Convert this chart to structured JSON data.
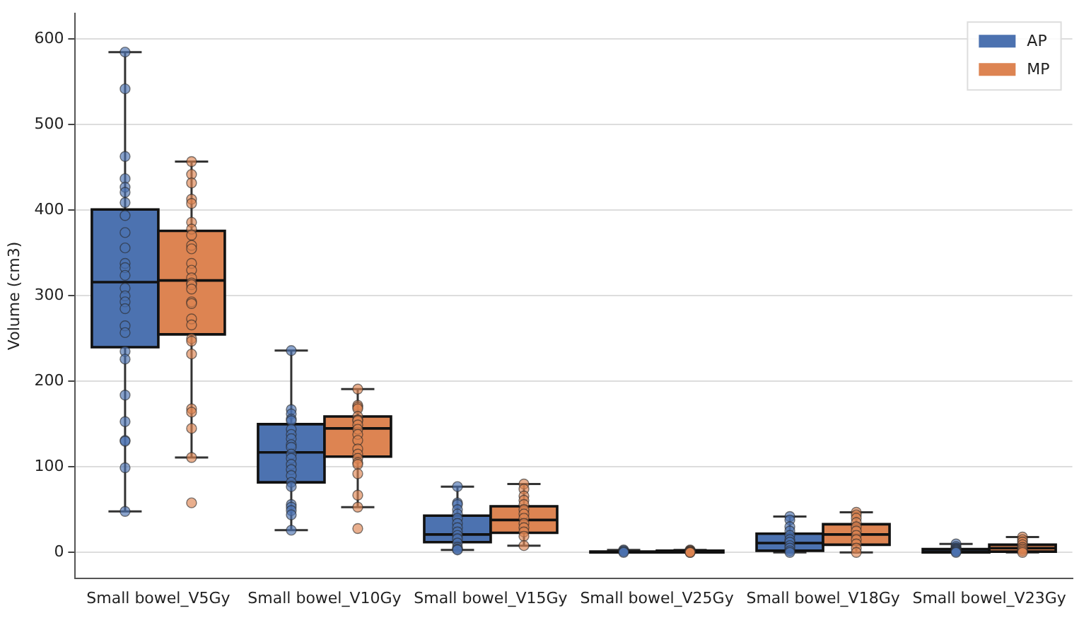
{
  "chart_data": {
    "type": "box",
    "ylabel": "Volume (cm3)",
    "categories": [
      "Small bowel_V5Gy",
      "Small bowel_V10Gy",
      "Small bowel_V15Gy",
      "Small bowel_V25Gy",
      "Small bowel_V18Gy",
      "Small bowel_V23Gy"
    ],
    "ylim": [
      -30,
      630
    ],
    "yticks": [
      0,
      100,
      200,
      300,
      400,
      500,
      600
    ],
    "grid": "y",
    "legend": "top right",
    "series": [
      {
        "name": "AP",
        "color": "#4c72b0",
        "boxes": [
          {
            "low": 48,
            "q1": 240,
            "median": 316,
            "q3": 401,
            "high": 585
          },
          {
            "low": 26,
            "q1": 82,
            "median": 117,
            "q3": 150,
            "high": 236
          },
          {
            "low": 3,
            "q1": 12,
            "median": 21,
            "q3": 43,
            "high": 77
          },
          {
            "low": 0,
            "q1": 0,
            "median": 0.5,
            "q3": 1,
            "high": 3
          },
          {
            "low": 0,
            "q1": 2,
            "median": 11,
            "q3": 22,
            "high": 42
          },
          {
            "low": 0,
            "q1": 0,
            "median": 1,
            "q3": 4,
            "high": 10
          }
        ]
      },
      {
        "name": "MP",
        "color": "#dd8452",
        "boxes": [
          {
            "low": 111,
            "q1": 255,
            "median": 318,
            "q3": 376,
            "high": 457
          },
          {
            "low": 53,
            "q1": 112,
            "median": 145,
            "q3": 159,
            "high": 191
          },
          {
            "low": 8,
            "q1": 23,
            "median": 38,
            "q3": 54,
            "high": 80
          },
          {
            "low": 0,
            "q1": 0,
            "median": 1,
            "q3": 2,
            "high": 3
          },
          {
            "low": 0,
            "q1": 9,
            "median": 21,
            "q3": 33,
            "high": 47
          },
          {
            "low": 0,
            "q1": 1,
            "median": 5,
            "q3": 9,
            "high": 18
          }
        ]
      },
      {
        "type": "scatter",
        "color": "#4c72b0",
        "x": [
          "Small bowel_V5Gy",
          "Small bowel_V5Gy",
          "Small bowel_V5Gy",
          "Small bowel_V5Gy",
          "Small bowel_V5Gy",
          "Small bowel_V5Gy",
          "Small bowel_V5Gy",
          "Small bowel_V5Gy",
          "Small bowel_V5Gy",
          "Small bowel_V5Gy",
          "Small bowel_V5Gy",
          "Small bowel_V5Gy",
          "Small bowel_V5Gy",
          "Small bowel_V5Gy",
          "Small bowel_V5Gy",
          "Small bowel_V5Gy",
          "Small bowel_V5Gy",
          "Small bowel_V5Gy",
          "Small bowel_V5Gy",
          "Small bowel_V5Gy",
          "Small bowel_V5Gy",
          "Small bowel_V5Gy",
          "Small bowel_V5Gy",
          "Small bowel_V5Gy",
          "Small bowel_V5Gy",
          "Small bowel_V5Gy",
          "Small bowel_V5Gy",
          "Small bowel_V10Gy",
          "Small bowel_V10Gy",
          "Small bowel_V10Gy",
          "Small bowel_V10Gy",
          "Small bowel_V10Gy",
          "Small bowel_V10Gy",
          "Small bowel_V10Gy",
          "Small bowel_V10Gy",
          "Small bowel_V10Gy",
          "Small bowel_V10Gy",
          "Small bowel_V10Gy",
          "Small bowel_V10Gy",
          "Small bowel_V10Gy",
          "Small bowel_V10Gy",
          "Small bowel_V10Gy",
          "Small bowel_V10Gy",
          "Small bowel_V10Gy",
          "Small bowel_V10Gy",
          "Small bowel_V10Gy",
          "Small bowel_V10Gy",
          "Small bowel_V10Gy",
          "Small bowel_V10Gy",
          "Small bowel_V15Gy",
          "Small bowel_V15Gy",
          "Small bowel_V15Gy",
          "Small bowel_V15Gy",
          "Small bowel_V15Gy",
          "Small bowel_V15Gy",
          "Small bowel_V15Gy",
          "Small bowel_V15Gy",
          "Small bowel_V15Gy",
          "Small bowel_V15Gy",
          "Small bowel_V15Gy",
          "Small bowel_V15Gy",
          "Small bowel_V15Gy",
          "Small bowel_V15Gy",
          "Small bowel_V15Gy",
          "Small bowel_V25Gy",
          "Small bowel_V25Gy",
          "Small bowel_V25Gy",
          "Small bowel_V25Gy",
          "Small bowel_V18Gy",
          "Small bowel_V18Gy",
          "Small bowel_V18Gy",
          "Small bowel_V18Gy",
          "Small bowel_V18Gy",
          "Small bowel_V18Gy",
          "Small bowel_V18Gy",
          "Small bowel_V18Gy",
          "Small bowel_V18Gy",
          "Small bowel_V18Gy",
          "Small bowel_V18Gy",
          "Small bowel_V23Gy",
          "Small bowel_V23Gy",
          "Small bowel_V23Gy",
          "Small bowel_V23Gy",
          "Small bowel_V23Gy",
          "Small bowel_V23Gy",
          "Small bowel_V23Gy",
          "Small bowel_V23Gy"
        ],
        "values": [
          585,
          542,
          463,
          437,
          427,
          421,
          409,
          394,
          374,
          356,
          338,
          333,
          324,
          309,
          300,
          293,
          285,
          265,
          257,
          235,
          226,
          184,
          153,
          131,
          130,
          99,
          48,
          236,
          167,
          162,
          156,
          154,
          144,
          138,
          133,
          126,
          123,
          115,
          110,
          103,
          97,
          90,
          82,
          77,
          56,
          53,
          49,
          44,
          26,
          77,
          58,
          56,
          50,
          45,
          40,
          34,
          29,
          24,
          20,
          16,
          11,
          6,
          4,
          3,
          3,
          2,
          1,
          0,
          42,
          38,
          30,
          25,
          20,
          15,
          12,
          8,
          5,
          2,
          0,
          10,
          7,
          5,
          4,
          3,
          2,
          1,
          0
        ]
      },
      {
        "type": "scatter",
        "color": "#dd8452",
        "x": [
          "Small bowel_V5Gy",
          "Small bowel_V5Gy",
          "Small bowel_V5Gy",
          "Small bowel_V5Gy",
          "Small bowel_V5Gy",
          "Small bowel_V5Gy",
          "Small bowel_V5Gy",
          "Small bowel_V5Gy",
          "Small bowel_V5Gy",
          "Small bowel_V5Gy",
          "Small bowel_V5Gy",
          "Small bowel_V5Gy",
          "Small bowel_V5Gy",
          "Small bowel_V5Gy",
          "Small bowel_V5Gy",
          "Small bowel_V5Gy",
          "Small bowel_V5Gy",
          "Small bowel_V5Gy",
          "Small bowel_V5Gy",
          "Small bowel_V5Gy",
          "Small bowel_V5Gy",
          "Small bowel_V5Gy",
          "Small bowel_V5Gy",
          "Small bowel_V5Gy",
          "Small bowel_V5Gy",
          "Small bowel_V5Gy",
          "Small bowel_V5Gy",
          "Small bowel_V5Gy",
          "Small bowel_V10Gy",
          "Small bowel_V10Gy",
          "Small bowel_V10Gy",
          "Small bowel_V10Gy",
          "Small bowel_V10Gy",
          "Small bowel_V10Gy",
          "Small bowel_V10Gy",
          "Small bowel_V10Gy",
          "Small bowel_V10Gy",
          "Small bowel_V10Gy",
          "Small bowel_V10Gy",
          "Small bowel_V10Gy",
          "Small bowel_V10Gy",
          "Small bowel_V10Gy",
          "Small bowel_V10Gy",
          "Small bowel_V10Gy",
          "Small bowel_V10Gy",
          "Small bowel_V10Gy",
          "Small bowel_V10Gy",
          "Small bowel_V10Gy",
          "Small bowel_V15Gy",
          "Small bowel_V15Gy",
          "Small bowel_V15Gy",
          "Small bowel_V15Gy",
          "Small bowel_V15Gy",
          "Small bowel_V15Gy",
          "Small bowel_V15Gy",
          "Small bowel_V15Gy",
          "Small bowel_V15Gy",
          "Small bowel_V15Gy",
          "Small bowel_V15Gy",
          "Small bowel_V15Gy",
          "Small bowel_V15Gy",
          "Small bowel_V25Gy",
          "Small bowel_V25Gy",
          "Small bowel_V25Gy",
          "Small bowel_V25Gy",
          "Small bowel_V25Gy",
          "Small bowel_V25Gy",
          "Small bowel_V25Gy",
          "Small bowel_V18Gy",
          "Small bowel_V18Gy",
          "Small bowel_V18Gy",
          "Small bowel_V18Gy",
          "Small bowel_V18Gy",
          "Small bowel_V18Gy",
          "Small bowel_V18Gy",
          "Small bowel_V18Gy",
          "Small bowel_V18Gy",
          "Small bowel_V18Gy",
          "Small bowel_V18Gy",
          "Small bowel_V23Gy",
          "Small bowel_V23Gy",
          "Small bowel_V23Gy",
          "Small bowel_V23Gy",
          "Small bowel_V23Gy",
          "Small bowel_V23Gy",
          "Small bowel_V23Gy",
          "Small bowel_V23Gy"
        ],
        "values": [
          457,
          442,
          432,
          413,
          408,
          386,
          378,
          371,
          359,
          355,
          338,
          330,
          321,
          315,
          313,
          308,
          293,
          291,
          273,
          266,
          250,
          247,
          232,
          168,
          164,
          145,
          111,
          58,
          191,
          172,
          170,
          168,
          159,
          155,
          154,
          149,
          144,
          138,
          131,
          121,
          115,
          110,
          105,
          103,
          92,
          67,
          53,
          28,
          80,
          74,
          66,
          61,
          56,
          50,
          45,
          40,
          34,
          29,
          24,
          19,
          8,
          3,
          2,
          2,
          1,
          1,
          0,
          0,
          47,
          44,
          40,
          35,
          30,
          25,
          20,
          15,
          10,
          5,
          0,
          18,
          15,
          12,
          9,
          6,
          4,
          2,
          0
        ]
      }
    ]
  }
}
